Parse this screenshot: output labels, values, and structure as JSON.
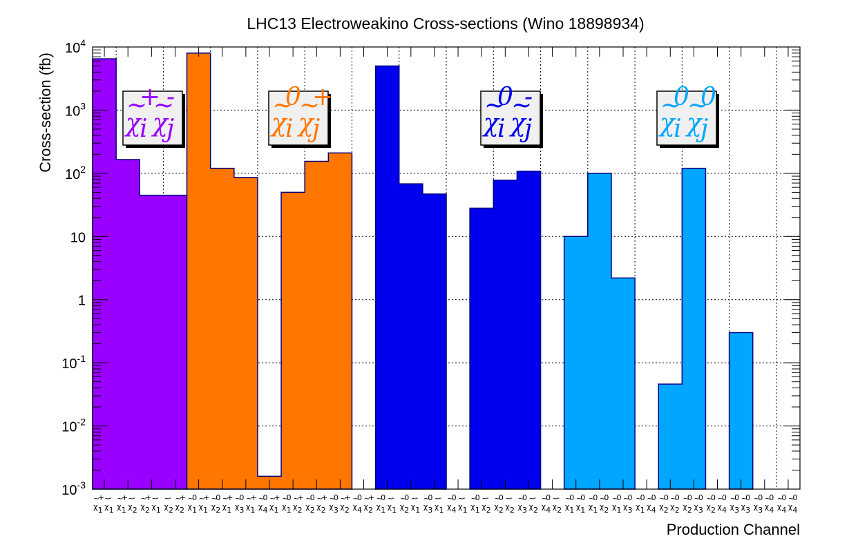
{
  "chart_data": {
    "type": "bar",
    "title": "LHC13 Electroweakino Cross-sections (Wino 18898934)",
    "xlabel": "Production Channel",
    "ylabel": "Cross-section (fb)",
    "yscale": "log",
    "ylim": [
      0.001,
      10000
    ],
    "grid": true,
    "yticks": [
      {
        "value": 0.001,
        "label": "10",
        "exp": "-3"
      },
      {
        "value": 0.01,
        "label": "10",
        "exp": "-2"
      },
      {
        "value": 0.1,
        "label": "10",
        "exp": "-1"
      },
      {
        "value": 1,
        "label": "1",
        "exp": ""
      },
      {
        "value": 10,
        "label": "10",
        "exp": ""
      },
      {
        "value": 100,
        "label": "10",
        "exp": "2"
      },
      {
        "value": 1000,
        "label": "10",
        "exp": "3"
      },
      {
        "value": 10000,
        "label": "10",
        "exp": "4"
      }
    ],
    "categories": [
      {
        "i": "1",
        "j": "1",
        "si": "+",
        "sj": "-"
      },
      {
        "i": "1",
        "j": "2",
        "si": "+",
        "sj": "-"
      },
      {
        "i": "2",
        "j": "1",
        "si": "+",
        "sj": "-"
      },
      {
        "i": "2",
        "j": "2",
        "si": "-",
        "sj": "+"
      },
      {
        "i": "1",
        "j": "1",
        "si": "0",
        "sj": "+"
      },
      {
        "i": "2",
        "j": "1",
        "si": "0",
        "sj": "+"
      },
      {
        "i": "3",
        "j": "1",
        "si": "0",
        "sj": "+"
      },
      {
        "i": "4",
        "j": "1",
        "si": "0",
        "sj": "+"
      },
      {
        "i": "1",
        "j": "2",
        "si": "0",
        "sj": "+"
      },
      {
        "i": "2",
        "j": "2",
        "si": "0",
        "sj": "+"
      },
      {
        "i": "3",
        "j": "2",
        "si": "0",
        "sj": "+"
      },
      {
        "i": "4",
        "j": "2",
        "si": "0",
        "sj": "+"
      },
      {
        "i": "1",
        "j": "1",
        "si": "0",
        "sj": "-"
      },
      {
        "i": "2",
        "j": "1",
        "si": "0",
        "sj": "-"
      },
      {
        "i": "3",
        "j": "1",
        "si": "0",
        "sj": "-"
      },
      {
        "i": "4",
        "j": "1",
        "si": "0",
        "sj": "-"
      },
      {
        "i": "1",
        "j": "2",
        "si": "0",
        "sj": "-"
      },
      {
        "i": "2",
        "j": "2",
        "si": "0",
        "sj": "-"
      },
      {
        "i": "3",
        "j": "2",
        "si": "0",
        "sj": "-"
      },
      {
        "i": "4",
        "j": "2",
        "si": "0",
        "sj": "-"
      },
      {
        "i": "1",
        "j": "1",
        "si": "0",
        "sj": "0"
      },
      {
        "i": "1",
        "j": "2",
        "si": "0",
        "sj": "0"
      },
      {
        "i": "1",
        "j": "3",
        "si": "0",
        "sj": "0"
      },
      {
        "i": "1",
        "j": "4",
        "si": "0",
        "sj": "0"
      },
      {
        "i": "2",
        "j": "2",
        "si": "0",
        "sj": "0"
      },
      {
        "i": "2",
        "j": "3",
        "si": "0",
        "sj": "0"
      },
      {
        "i": "2",
        "j": "4",
        "si": "0",
        "sj": "0"
      },
      {
        "i": "3",
        "j": "3",
        "si": "0",
        "sj": "0"
      },
      {
        "i": "3",
        "j": "4",
        "si": "0",
        "sj": "0"
      },
      {
        "i": "4",
        "j": "4",
        "si": "0",
        "sj": "0"
      }
    ],
    "series": [
      {
        "group": "chargino-pair",
        "color": "#9900ff",
        "values": [
          6500,
          165,
          45,
          45,
          null,
          null,
          null,
          null,
          null,
          null,
          null,
          null,
          null,
          null,
          null,
          null,
          null,
          null,
          null,
          null,
          null,
          null,
          null,
          null,
          null,
          null,
          null,
          null,
          null,
          null
        ]
      },
      {
        "group": "neutralino-chargino-plus",
        "color": "#ff7700",
        "values": [
          null,
          null,
          null,
          null,
          8000,
          120,
          86,
          0.0016,
          50,
          155,
          210,
          null,
          null,
          null,
          null,
          null,
          null,
          null,
          null,
          null,
          null,
          null,
          null,
          null,
          null,
          null,
          null,
          null,
          null,
          null
        ]
      },
      {
        "group": "neutralino-chargino-minus",
        "color": "#0000ee",
        "values": [
          null,
          null,
          null,
          null,
          null,
          null,
          null,
          null,
          null,
          null,
          null,
          null,
          5000,
          68,
          47,
          null,
          28,
          78,
          108,
          null,
          null,
          null,
          null,
          null,
          null,
          null,
          null,
          null,
          null,
          null
        ]
      },
      {
        "group": "neutralino-pair",
        "color": "#00a6ff",
        "values": [
          null,
          null,
          null,
          null,
          null,
          null,
          null,
          null,
          null,
          null,
          null,
          null,
          null,
          null,
          null,
          null,
          null,
          null,
          null,
          null,
          10,
          100,
          2.2,
          null,
          0.046,
          120,
          null,
          0.3,
          null,
          null
        ]
      }
    ],
    "labels": [
      {
        "group": "chargino-pair",
        "color": "#9900ff",
        "i": "i",
        "j": "j",
        "si": "+",
        "sj": "-"
      },
      {
        "group": "neutralino-chargino-plus",
        "color": "#ff7700",
        "i": "i",
        "j": "j",
        "si": "0",
        "sj": "+"
      },
      {
        "group": "neutralino-chargino-minus",
        "color": "#0000ee",
        "i": "i",
        "j": "j",
        "si": "0",
        "sj": "-"
      },
      {
        "group": "neutralino-pair",
        "color": "#00a6ff",
        "i": "i",
        "j": "j",
        "si": "0",
        "sj": "0"
      }
    ]
  }
}
